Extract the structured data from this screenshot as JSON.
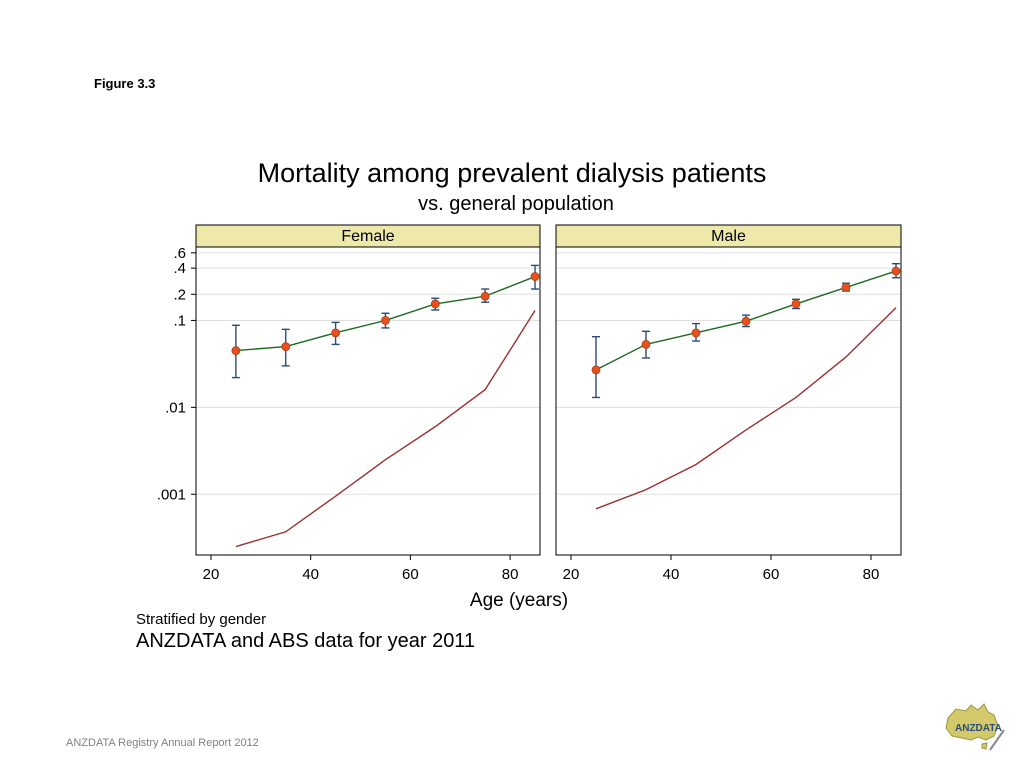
{
  "figure_label": "Figure 3.3",
  "notes": {
    "line1": "Stratified by gender",
    "line2": "ANZDATA and ABS data for year 2011"
  },
  "footer": "ANZDATA Registry Annual Report 2012",
  "logo": {
    "text": "ANZDATA",
    "icon": "australia-map-logo"
  },
  "colors": {
    "panel_header_bg": "#eee8aa",
    "dialysis_line": "#1e6b1e",
    "dialysis_marker": "#e8501e",
    "error_bar": "#2a4d78",
    "general_population_line": "#9c3030",
    "grid": "#e0e0e0"
  },
  "chart_data": {
    "type": "line",
    "title": "Mortality among prevalent dialysis patients",
    "subtitle": "vs. general population",
    "xlabel": "Age (years)",
    "ylabel": "",
    "yscale": "log",
    "xlim": [
      17,
      86
    ],
    "ylim": [
      0.0002,
      0.7
    ],
    "x_ticks": [
      20,
      40,
      60,
      80
    ],
    "y_ticks": [
      {
        "value": 0.6,
        "label": ".6"
      },
      {
        "value": 0.4,
        "label": ".4"
      },
      {
        "value": 0.2,
        "label": ".2"
      },
      {
        "value": 0.1,
        "label": ".1"
      },
      {
        "value": 0.01,
        "label": ".01"
      },
      {
        "value": 0.001,
        "label": ".001"
      }
    ],
    "grid": true,
    "panels": [
      {
        "name": "Female",
        "x": [
          25,
          35,
          45,
          55,
          65,
          75,
          85
        ],
        "series": [
          {
            "values": [
              0.045,
              0.05,
              0.072,
              0.1,
              0.155,
              0.19,
              0.32
            ],
            "lower": [
              0.022,
              0.03,
              0.053,
              0.082,
              0.132,
              0.162,
              0.23
            ],
            "upper": [
              0.088,
              0.079,
              0.095,
              0.121,
              0.18,
              0.23,
              0.43
            ]
          },
          {
            "values": [
              0.00025,
              0.00037,
              0.00095,
              0.0025,
              0.006,
              0.016,
              0.13
            ]
          }
        ]
      },
      {
        "name": "Male",
        "x": [
          25,
          35,
          45,
          55,
          65,
          75,
          85
        ],
        "series": [
          {
            "values": [
              0.027,
              0.053,
              0.072,
              0.098,
              0.155,
              0.24,
              0.37
            ],
            "lower": [
              0.013,
              0.037,
              0.058,
              0.085,
              0.137,
              0.218,
              0.31
            ],
            "upper": [
              0.065,
              0.075,
              0.092,
              0.115,
              0.175,
              0.268,
              0.45
            ]
          },
          {
            "values": [
              0.00068,
              0.00113,
              0.0022,
              0.0055,
              0.013,
              0.038,
              0.14
            ]
          }
        ]
      }
    ]
  }
}
